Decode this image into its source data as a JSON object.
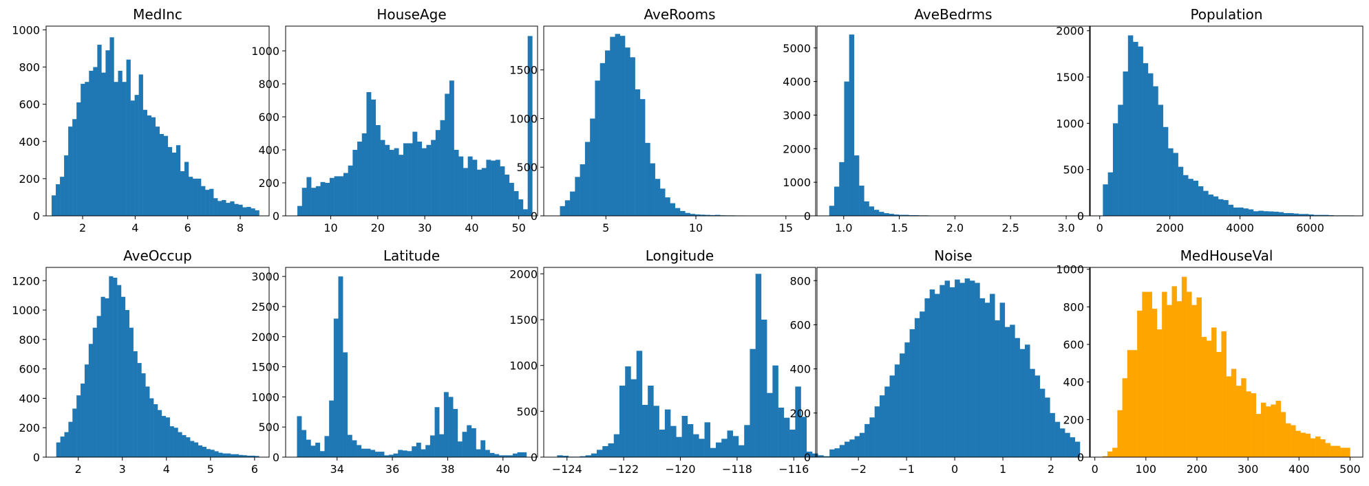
{
  "chart_data": [
    {
      "type": "histogram",
      "title": "MedInc",
      "color": "#1f77b4",
      "bins": {
        "start": 0.82,
        "width": 0.158
      },
      "counts": [
        110,
        170,
        210,
        325,
        480,
        520,
        610,
        710,
        720,
        780,
        800,
        920,
        770,
        890,
        960,
        720,
        780,
        720,
        840,
        620,
        650,
        760,
        570,
        540,
        530,
        480,
        440,
        430,
        370,
        340,
        380,
        240,
        290,
        210,
        200,
        200,
        160,
        140,
        145,
        95,
        80,
        85,
        70,
        78,
        64,
        60,
        46,
        48,
        40,
        30
      ],
      "xlim": [
        0.61,
        9.1
      ],
      "ylim": [
        0,
        1020
      ],
      "xticks": [
        2,
        4,
        6,
        8
      ],
      "yticks": [
        0,
        200,
        400,
        600,
        800,
        1000
      ]
    },
    {
      "type": "histogram",
      "title": "HouseAge",
      "color": "#1f77b4",
      "bins": {
        "start": 2.9,
        "width": 0.98
      },
      "counts": [
        60,
        170,
        235,
        170,
        180,
        205,
        200,
        230,
        240,
        240,
        260,
        305,
        400,
        450,
        500,
        750,
        705,
        550,
        460,
        430,
        400,
        410,
        370,
        440,
        440,
        510,
        450,
        410,
        430,
        460,
        520,
        580,
        740,
        820,
        400,
        360,
        290,
        360,
        340,
        280,
        290,
        340,
        335,
        340,
        300,
        250,
        200,
        150,
        100,
        40,
        1090
      ],
      "xlim": [
        0.4,
        54.0
      ],
      "ylim": [
        0,
        1150
      ],
      "xticks": [
        10,
        20,
        30,
        40,
        50
      ],
      "yticks": [
        0,
        200,
        400,
        600,
        800,
        1000
      ]
    },
    {
      "type": "histogram",
      "title": "AveRooms",
      "color": "#1f77b4",
      "bins": {
        "start": 2.45,
        "width": 0.278
      },
      "counts": [
        100,
        160,
        250,
        400,
        530,
        760,
        1000,
        1390,
        1570,
        1700,
        1840,
        1870,
        1850,
        1730,
        1630,
        1300,
        1200,
        750,
        540,
        380,
        280,
        190,
        130,
        80,
        50,
        30,
        20,
        15,
        12,
        10,
        8,
        10,
        6,
        5,
        5,
        4,
        4,
        3,
        3,
        3,
        2,
        2,
        2,
        2,
        2,
        1,
        1,
        1,
        1,
        1
      ],
      "xlim": [
        1.55,
        16.65
      ],
      "ylim": [
        0,
        1950
      ],
      "xticks": [
        5,
        10,
        15
      ],
      "yticks": [
        0,
        500,
        1000,
        1500
      ]
    },
    {
      "type": "histogram",
      "title": "AveBedrms",
      "color": "#1f77b4",
      "bins": {
        "start": 0.87,
        "width": 0.0447
      },
      "counts": [
        300,
        870,
        1600,
        4000,
        5400,
        1800,
        900,
        430,
        280,
        180,
        120,
        80,
        60,
        40,
        30,
        30,
        20,
        20,
        15,
        15,
        10,
        10,
        8,
        8,
        10,
        6,
        5,
        4,
        4,
        4,
        3,
        3,
        3,
        3,
        3,
        2,
        2,
        2,
        2,
        2,
        2,
        1,
        1,
        1,
        1,
        1,
        1,
        1,
        1,
        1
      ],
      "xlim": [
        0.76,
        3.21
      ],
      "ylim": [
        0,
        5650
      ],
      "xticks": [
        1.0,
        1.5,
        2.0,
        2.5,
        3.0
      ],
      "ytick_labels_decimals": 1,
      "yticks": [
        0,
        1000,
        2000,
        3000,
        4000,
        5000
      ]
    },
    {
      "type": "histogram",
      "title": "Population",
      "color": "#1f77b4",
      "bins": {
        "start": 90,
        "width": 143
      },
      "counts": [
        340,
        470,
        1000,
        1200,
        1560,
        1950,
        1880,
        1830,
        1650,
        1540,
        1400,
        1200,
        960,
        730,
        680,
        530,
        440,
        400,
        380,
        320,
        270,
        230,
        210,
        180,
        170,
        120,
        90,
        90,
        80,
        70,
        50,
        55,
        50,
        48,
        45,
        40,
        30,
        30,
        25,
        20,
        20,
        15,
        10,
        10,
        10,
        7,
        5,
        5,
        5,
        5
      ],
      "xlim": [
        -270,
        7500
      ],
      "ylim": [
        0,
        2050
      ],
      "xticks": [
        0,
        2000,
        4000,
        6000
      ],
      "yticks": [
        0,
        500,
        1000,
        1500,
        2000
      ]
    },
    {
      "type": "histogram",
      "title": "AveOccup",
      "color": "#1f77b4",
      "bins": {
        "start": 1.5,
        "width": 0.092
      },
      "counts": [
        100,
        140,
        170,
        240,
        330,
        420,
        500,
        630,
        770,
        880,
        960,
        1090,
        1080,
        1230,
        1220,
        1170,
        1090,
        1000,
        880,
        720,
        640,
        570,
        480,
        400,
        360,
        320,
        280,
        270,
        210,
        200,
        170,
        150,
        135,
        110,
        100,
        80,
        70,
        55,
        50,
        40,
        30,
        25,
        25,
        20,
        20,
        15,
        13,
        10,
        10,
        8
      ],
      "xlim": [
        1.27,
        6.33
      ],
      "ylim": [
        0,
        1290
      ],
      "xticks": [
        2,
        3,
        4,
        5,
        6
      ],
      "yticks": [
        0,
        200,
        400,
        600,
        800,
        1000,
        1200
      ]
    },
    {
      "type": "histogram",
      "title": "Latitude",
      "color": "#1f77b4",
      "bins": {
        "start": 32.55,
        "width": 0.166
      },
      "counts": [
        680,
        450,
        290,
        190,
        240,
        100,
        350,
        940,
        2300,
        3000,
        1740,
        370,
        280,
        200,
        140,
        140,
        120,
        90,
        90,
        30,
        40,
        60,
        120,
        110,
        100,
        180,
        240,
        130,
        200,
        360,
        830,
        380,
        1080,
        1000,
        800,
        260,
        420,
        530,
        480,
        130,
        280,
        120,
        70,
        50,
        30,
        30,
        30,
        60,
        80,
        80
      ],
      "xlim": [
        32.14,
        41.25
      ],
      "ylim": [
        0,
        3150
      ],
      "xticks": [
        34,
        36,
        38,
        40
      ],
      "yticks": [
        0,
        500,
        1000,
        1500,
        2000,
        2500,
        3000
      ]
    },
    {
      "type": "histogram",
      "title": "Longitude",
      "color": "#1f77b4",
      "bins": {
        "start": -124.35,
        "width": 0.2
      },
      "counts": [
        20,
        15,
        5,
        5,
        10,
        20,
        40,
        80,
        120,
        150,
        250,
        780,
        990,
        850,
        1160,
        570,
        780,
        560,
        300,
        520,
        340,
        220,
        450,
        360,
        250,
        200,
        380,
        100,
        160,
        200,
        290,
        230,
        130,
        350,
        1180,
        2000,
        1500,
        700,
        1000,
        540,
        430,
        300,
        770,
        440,
        60,
        40,
        20,
        10,
        5,
        5
      ],
      "xlim": [
        -124.82,
        -115.23
      ],
      "ylim": [
        0,
        2070
      ],
      "xticks": [
        -124,
        -122,
        -120,
        -118,
        -116
      ],
      "yticks": [
        0,
        500,
        1000,
        1500,
        2000
      ]
    },
    {
      "type": "histogram",
      "title": "Noise",
      "color": "#1f77b4",
      "bins": {
        "start": -2.6,
        "width": 0.104
      },
      "counts": [
        35,
        40,
        55,
        70,
        80,
        95,
        110,
        150,
        180,
        230,
        280,
        320,
        370,
        420,
        470,
        520,
        580,
        630,
        660,
        720,
        760,
        740,
        780,
        800,
        770,
        805,
        790,
        810,
        800,
        790,
        720,
        700,
        740,
        620,
        700,
        590,
        600,
        540,
        490,
        510,
        400,
        370,
        310,
        270,
        200,
        160,
        130,
        110,
        90,
        70
      ],
      "xlim": [
        -2.86,
        2.8
      ],
      "ylim": [
        0,
        860
      ],
      "xticks": [
        -2,
        -1,
        0,
        1,
        2
      ],
      "yticks": [
        0,
        200,
        400,
        600,
        800
      ]
    },
    {
      "type": "histogram",
      "title": "MedHouseVal",
      "color": "#ffa500",
      "bins": {
        "start": 15,
        "width": 9.7
      },
      "counts": [
        5,
        30,
        50,
        250,
        420,
        570,
        570,
        780,
        880,
        880,
        790,
        680,
        880,
        810,
        910,
        830,
        960,
        880,
        810,
        850,
        640,
        620,
        690,
        560,
        670,
        430,
        470,
        380,
        420,
        350,
        340,
        230,
        290,
        270,
        280,
        300,
        240,
        180,
        170,
        140,
        130,
        125,
        100,
        110,
        95,
        75,
        60,
        60,
        50,
        50
      ],
      "xlim": [
        -9,
        525
      ],
      "ylim": [
        0,
        1010
      ],
      "xticks": [
        0,
        100,
        200,
        300,
        400,
        500
      ],
      "yticks": [
        0,
        200,
        400,
        600,
        800,
        1000
      ]
    }
  ]
}
